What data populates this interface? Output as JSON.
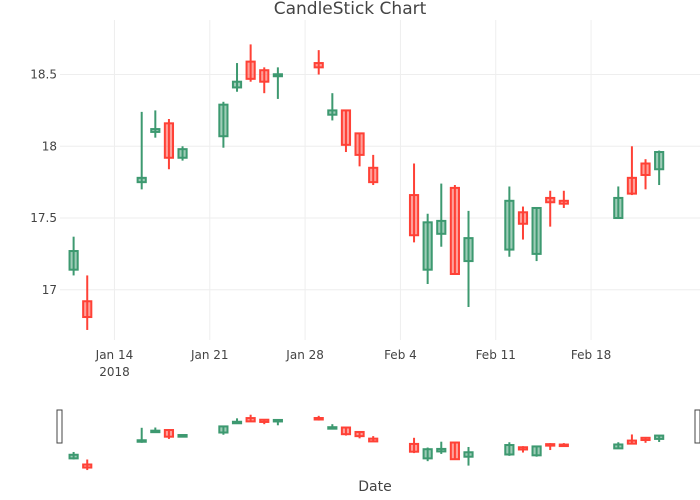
{
  "chart_data": {
    "type": "candlestick",
    "title": "CandleStick Chart",
    "xlabel": "Date",
    "ylabel": "",
    "ylim": [
      16.65,
      18.88
    ],
    "xlim": [
      "2018-01-10",
      "2018-02-26"
    ],
    "yticks": [
      17,
      17.5,
      18,
      18.5
    ],
    "ytick_labels": [
      "17",
      "17.5",
      "18",
      "18.5"
    ],
    "xticks": [
      {
        "date": "2018-01-14",
        "label": "Jan 14",
        "sublabel": "2018"
      },
      {
        "date": "2018-01-21",
        "label": "Jan 21",
        "sublabel": ""
      },
      {
        "date": "2018-01-28",
        "label": "Jan 28",
        "sublabel": ""
      },
      {
        "date": "2018-02-04",
        "label": "Feb 4",
        "sublabel": ""
      },
      {
        "date": "2018-02-11",
        "label": "Feb 11",
        "sublabel": ""
      },
      {
        "date": "2018-02-18",
        "label": "Feb 18",
        "sublabel": ""
      }
    ],
    "grid": true,
    "rangeslider": true,
    "colors": {
      "increasing": "#3D9970",
      "increasing_fill": "rgba(61,153,112,0.5)",
      "decreasing": "#FF4136",
      "decreasing_fill": "rgba(255,65,54,0.5)",
      "grid": "#eeeeee",
      "text": "#444444"
    },
    "candles": [
      {
        "date": "2018-01-11",
        "open": 17.14,
        "high": 17.37,
        "low": 17.1,
        "close": 17.27
      },
      {
        "date": "2018-01-12",
        "open": 16.92,
        "high": 17.1,
        "low": 16.72,
        "close": 16.81
      },
      {
        "date": "2018-01-16",
        "open": 17.75,
        "high": 18.24,
        "low": 17.7,
        "close": 17.78
      },
      {
        "date": "2018-01-17",
        "open": 18.1,
        "high": 18.25,
        "low": 18.06,
        "close": 18.12
      },
      {
        "date": "2018-01-18",
        "open": 18.16,
        "high": 18.19,
        "low": 17.84,
        "close": 17.92
      },
      {
        "date": "2018-01-19",
        "open": 17.92,
        "high": 18.0,
        "low": 17.9,
        "close": 17.98
      },
      {
        "date": "2018-01-22",
        "open": 18.07,
        "high": 18.31,
        "low": 17.99,
        "close": 18.29
      },
      {
        "date": "2018-01-23",
        "open": 18.41,
        "high": 18.58,
        "low": 18.38,
        "close": 18.45
      },
      {
        "date": "2018-01-24",
        "open": 18.59,
        "high": 18.71,
        "low": 18.45,
        "close": 18.47
      },
      {
        "date": "2018-01-25",
        "open": 18.53,
        "high": 18.55,
        "low": 18.37,
        "close": 18.45
      },
      {
        "date": "2018-01-26",
        "open": 18.49,
        "high": 18.55,
        "low": 18.33,
        "close": 18.5
      },
      {
        "date": "2018-01-29",
        "open": 18.58,
        "high": 18.67,
        "low": 18.5,
        "close": 18.55
      },
      {
        "date": "2018-01-30",
        "open": 18.22,
        "high": 18.37,
        "low": 18.18,
        "close": 18.25
      },
      {
        "date": "2018-01-31",
        "open": 18.25,
        "high": 18.25,
        "low": 17.96,
        "close": 18.01
      },
      {
        "date": "2018-02-01",
        "open": 18.09,
        "high": 18.09,
        "low": 17.86,
        "close": 17.94
      },
      {
        "date": "2018-02-02",
        "open": 17.85,
        "high": 17.94,
        "low": 17.73,
        "close": 17.75
      },
      {
        "date": "2018-02-05",
        "open": 17.66,
        "high": 17.88,
        "low": 17.33,
        "close": 17.38
      },
      {
        "date": "2018-02-06",
        "open": 17.14,
        "high": 17.53,
        "low": 17.04,
        "close": 17.47
      },
      {
        "date": "2018-02-07",
        "open": 17.39,
        "high": 17.74,
        "low": 17.3,
        "close": 17.48
      },
      {
        "date": "2018-02-08",
        "open": 17.71,
        "high": 17.73,
        "low": 17.11,
        "close": 17.11
      },
      {
        "date": "2018-02-09",
        "open": 17.2,
        "high": 17.55,
        "low": 16.88,
        "close": 17.36
      },
      {
        "date": "2018-02-12",
        "open": 17.28,
        "high": 17.72,
        "low": 17.23,
        "close": 17.62
      },
      {
        "date": "2018-02-13",
        "open": 17.54,
        "high": 17.58,
        "low": 17.35,
        "close": 17.46
      },
      {
        "date": "2018-02-14",
        "open": 17.25,
        "high": 17.57,
        "low": 17.2,
        "close": 17.57
      },
      {
        "date": "2018-02-15",
        "open": 17.64,
        "high": 17.69,
        "low": 17.44,
        "close": 17.61
      },
      {
        "date": "2018-02-16",
        "open": 17.62,
        "high": 17.69,
        "low": 17.57,
        "close": 17.6
      },
      {
        "date": "2018-02-20",
        "open": 17.5,
        "high": 17.72,
        "low": 17.5,
        "close": 17.64
      },
      {
        "date": "2018-02-21",
        "open": 17.78,
        "high": 18.0,
        "low": 17.66,
        "close": 17.67
      },
      {
        "date": "2018-02-22",
        "open": 17.88,
        "high": 17.91,
        "low": 17.7,
        "close": 17.8
      },
      {
        "date": "2018-02-23",
        "open": 17.84,
        "high": 17.97,
        "low": 17.73,
        "close": 17.96
      }
    ]
  }
}
